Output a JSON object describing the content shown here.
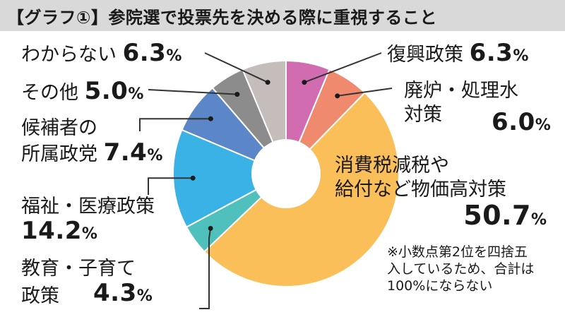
{
  "chart_data": {
    "type": "pie",
    "title": "【グラフ①】参院選で投票先を決める際に重視すること",
    "unit": "%",
    "slices": [
      {
        "label": "復興政策",
        "value": 6.3,
        "color": "#d16cb0"
      },
      {
        "label": "廃炉・処理水対策",
        "value": 6.0,
        "color": "#ef8a6e"
      },
      {
        "label": "消費税減税や給付など物価高対策",
        "value": 50.7,
        "color": "#fbbf5a"
      },
      {
        "label": "教育・子育て政策",
        "value": 4.3,
        "color": "#4fc0bb"
      },
      {
        "label": "福祉・医療政策",
        "value": 14.2,
        "color": "#3bb2e6"
      },
      {
        "label": "候補者の所属政党",
        "value": 7.4,
        "color": "#5b86c8"
      },
      {
        "label": "その他",
        "value": 5.0,
        "color": "#8c8c8c"
      },
      {
        "label": "わからない",
        "value": 6.3,
        "color": "#c5bcbc"
      }
    ],
    "note": "※小数点第2位を四捨五\n入しているため、合計は\n100%にならない"
  },
  "labels": {
    "fukko": {
      "l1": "復興政策",
      "pct": "6.3",
      "unit": "%"
    },
    "hairo": {
      "l1": "廃炉・処理水",
      "l2": "対策",
      "pct": "6.0",
      "unit": "%"
    },
    "bukka": {
      "l1": "消費税減税や",
      "l2": "給付など物価高対策",
      "pct": "50.7",
      "unit": "%"
    },
    "kyoiku": {
      "l1": "教育・子育て",
      "l2": "政策",
      "pct": "4.3",
      "unit": "%"
    },
    "fukushi": {
      "l1": "福祉・医療政策",
      "pct": "14.2",
      "unit": "%"
    },
    "seito": {
      "l1": "候補者の",
      "l2": "所属政党",
      "pct": "7.4",
      "unit": "%"
    },
    "sonota": {
      "l1": "その他",
      "pct": "5.0",
      "unit": "%"
    },
    "wakaranai": {
      "l1": "わからない",
      "pct": "6.3",
      "unit": "%"
    }
  }
}
